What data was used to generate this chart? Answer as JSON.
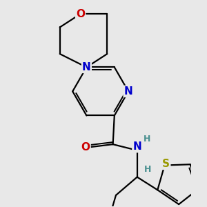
{
  "bg_color": "#e8e8e8",
  "bond_color": "#000000",
  "bond_width": 1.6,
  "atom_colors": {
    "N": "#0000cc",
    "O": "#cc0000",
    "S": "#999900",
    "H": "#4a9090"
  },
  "font_size": 11,
  "font_size_h": 9
}
